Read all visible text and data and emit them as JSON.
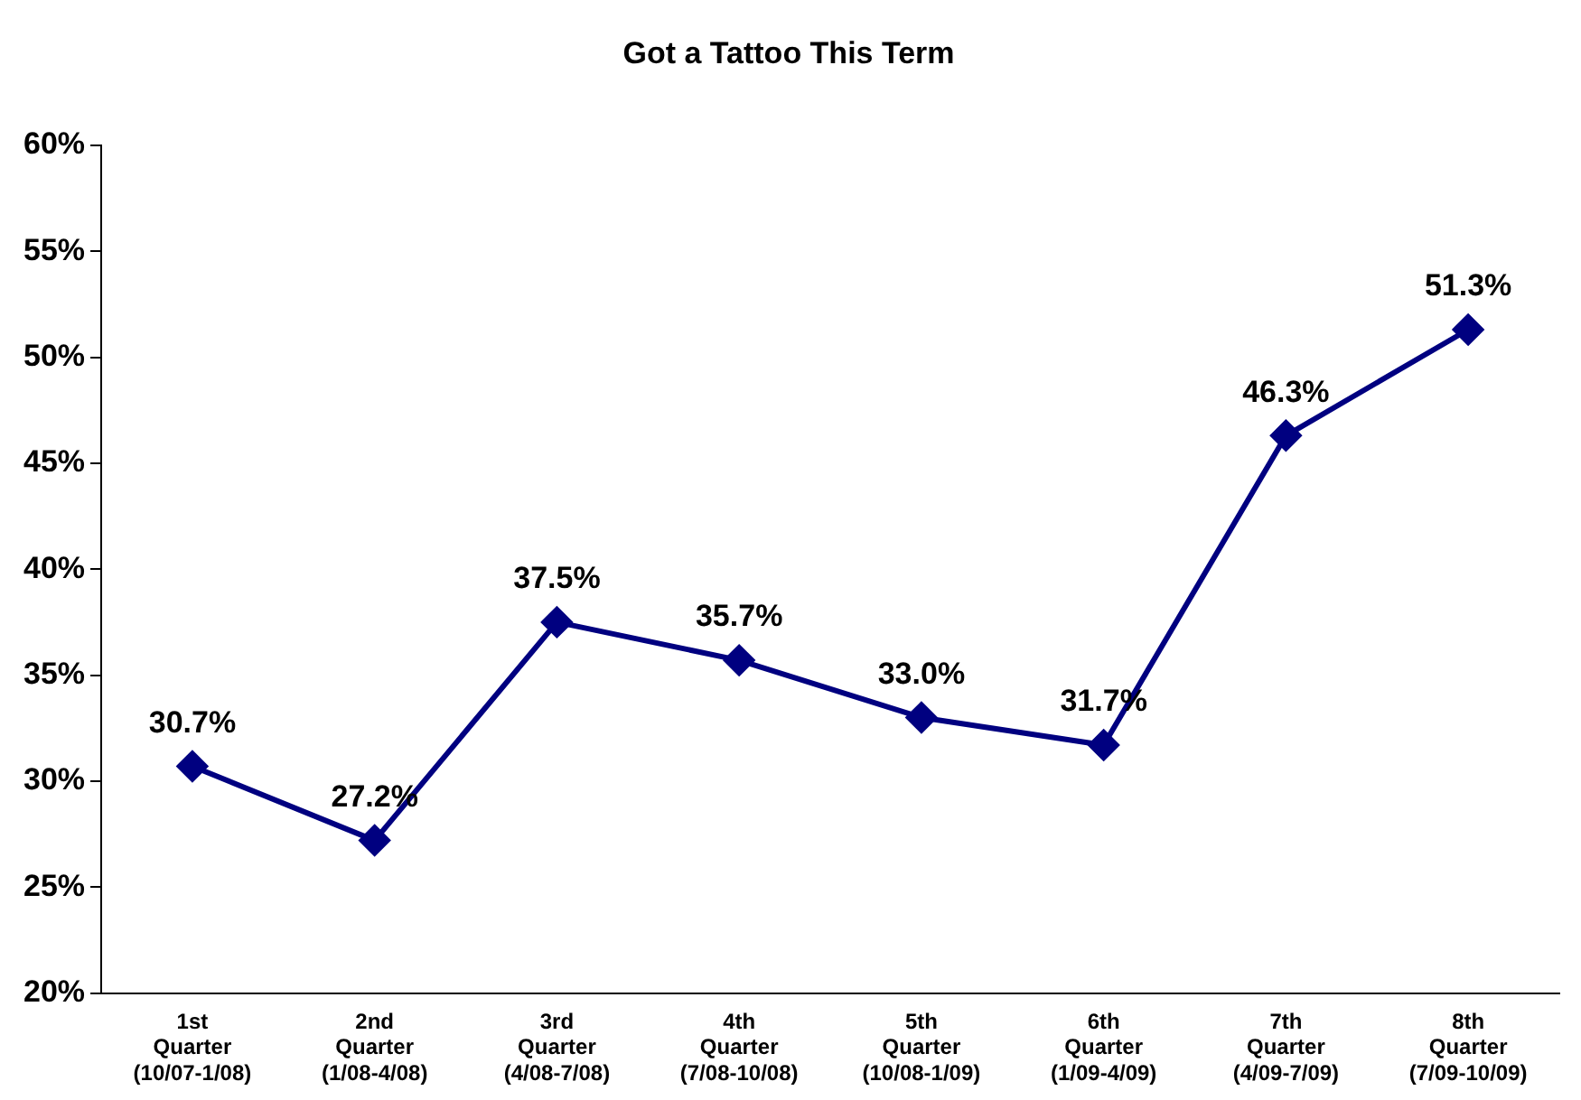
{
  "chart_data": {
    "type": "line",
    "title": "Got a Tattoo This Term",
    "categories": [
      "1st\nQuarter\n(10/07-1/08)",
      "2nd\nQuarter\n(1/08-4/08)",
      "3rd\nQuarter\n(4/08-7/08)",
      "4th\nQuarter\n(7/08-10/08)",
      "5th\nQuarter\n(10/08-1/09)",
      "6th\nQuarter\n(1/09-4/09)",
      "7th\nQuarter\n(4/09-7/09)",
      "8th\nQuarter\n(7/09-10/09)"
    ],
    "series": [
      {
        "color": "#000080",
        "values": [
          30.7,
          27.2,
          37.5,
          35.7,
          33.0,
          31.7,
          46.3,
          51.3
        ],
        "value_labels": [
          "30.7%",
          "27.2%",
          "37.5%",
          "35.7%",
          "33.0%",
          "31.7%",
          "46.3%",
          "51.3%"
        ]
      }
    ],
    "ylim": [
      20,
      60
    ],
    "yticks": [
      {
        "value": 20,
        "label": "20%"
      },
      {
        "value": 25,
        "label": "25%"
      },
      {
        "value": 30,
        "label": "30%"
      },
      {
        "value": 35,
        "label": "35%"
      },
      {
        "value": 40,
        "label": "40%"
      },
      {
        "value": 45,
        "label": "45%"
      },
      {
        "value": 50,
        "label": "50%"
      },
      {
        "value": 55,
        "label": "55%"
      },
      {
        "value": 60,
        "label": "60%"
      }
    ],
    "grid": false,
    "legend": false,
    "marker": "diamond",
    "line_style": "solid"
  }
}
